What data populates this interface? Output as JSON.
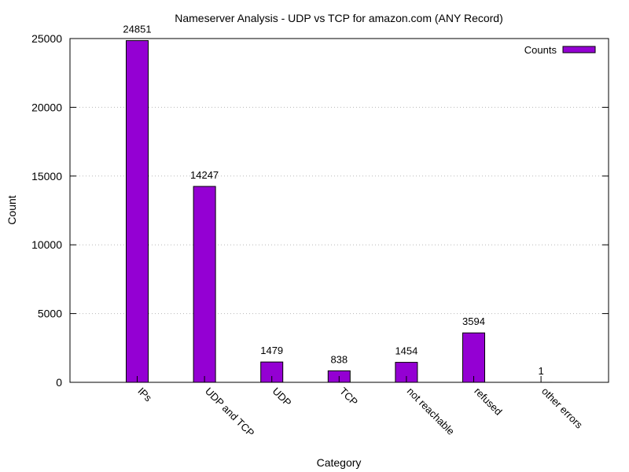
{
  "chart_data": {
    "type": "bar",
    "title": "Nameserver Analysis - UDP vs TCP for amazon.com (ANY Record)",
    "xlabel": "Category",
    "ylabel": "Count",
    "categories": [
      "IPs",
      "UDP and TCP",
      "UDP",
      "TCP",
      "not reachable",
      "refused",
      "other errors"
    ],
    "series": [
      {
        "name": "Counts",
        "values": [
          24851,
          14247,
          1479,
          838,
          1454,
          3594,
          1
        ],
        "color": "#9400d3"
      }
    ],
    "ylim": [
      0,
      25000
    ],
    "yticks": [
      "0",
      "5000",
      "10000",
      "15000",
      "20000",
      "25000"
    ],
    "grid": true,
    "legend_position": "top-right"
  }
}
